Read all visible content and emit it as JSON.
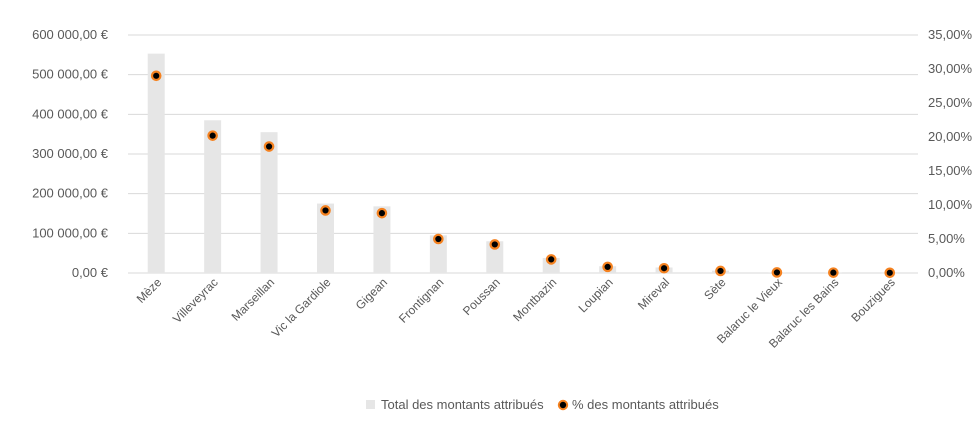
{
  "chart_data": {
    "type": "bar",
    "title": "",
    "xlabel": "",
    "ylabel": "",
    "categories": [
      "Mèze",
      "Villeveyrac",
      "Marseillan",
      "Vic la Gardiole",
      "Gigean",
      "Frontignan",
      "Poussan",
      "Montbazin",
      "Loupian",
      "Mireval",
      "Sète",
      "Balaruc le Vieux",
      "Balaruc les Bains",
      "Bouzigues"
    ],
    "series": [
      {
        "name": "Total des montants attribués",
        "type": "bar",
        "axis": "left",
        "color": "#e6e6e6",
        "values": [
          553000,
          385000,
          355000,
          175000,
          168000,
          95000,
          80000,
          38000,
          17000,
          14000,
          6000,
          1500,
          1000,
          500
        ]
      },
      {
        "name": "% des montants attribués",
        "type": "scatter",
        "axis": "right",
        "color": "#000000",
        "edge_color": "#f58220",
        "values": [
          0.29,
          0.202,
          0.186,
          0.092,
          0.088,
          0.05,
          0.042,
          0.02,
          0.009,
          0.007,
          0.003,
          0.0008,
          0.0005,
          0.0003
        ]
      }
    ],
    "left_axis": {
      "ylim": [
        0,
        600000
      ],
      "ticks": [
        0,
        100000,
        200000,
        300000,
        400000,
        500000,
        600000
      ],
      "tick_labels": [
        "0,00 €",
        "100 000,00 €",
        "200 000,00 €",
        "300 000,00 €",
        "400 000,00 €",
        "500 000,00 €",
        "600 000,00 €"
      ]
    },
    "right_axis": {
      "ylim": [
        0,
        0.35
      ],
      "ticks": [
        0,
        0.05,
        0.1,
        0.15,
        0.2,
        0.25,
        0.3,
        0.35
      ],
      "tick_labels": [
        "0,00%",
        "5,00%",
        "10,00%",
        "15,00%",
        "20,00%",
        "25,00%",
        "30,00%",
        "35,00%"
      ]
    },
    "grid": true,
    "legend": "bottom"
  }
}
